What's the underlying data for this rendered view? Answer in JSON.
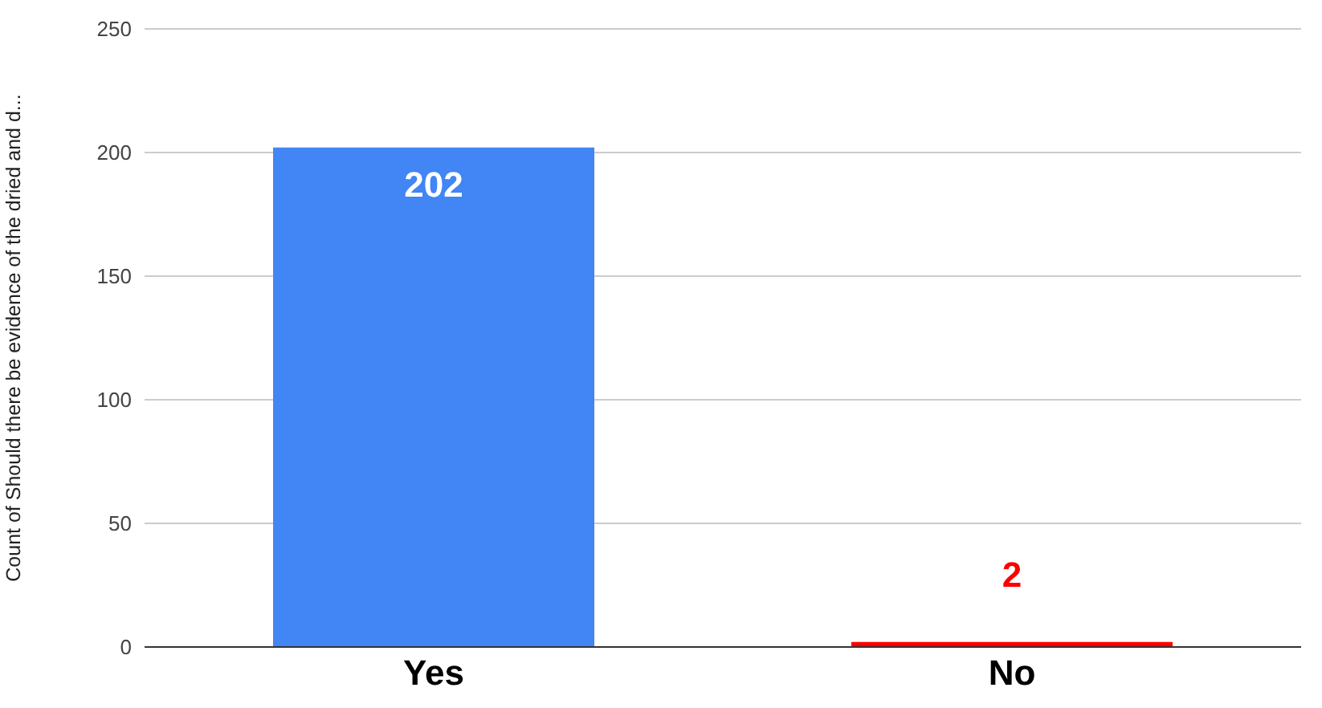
{
  "chart_data": {
    "type": "bar",
    "ylabel": "Count of Should there be evidence of the dried and d...",
    "categories": [
      "Yes",
      "No"
    ],
    "values": [
      202,
      2
    ],
    "colors": [
      "#4285f4",
      "#ff0000"
    ],
    "ylim": [
      0,
      250
    ],
    "yticks": [
      0,
      50,
      100,
      150,
      200,
      250
    ],
    "grid": "y",
    "data_labels": true
  }
}
